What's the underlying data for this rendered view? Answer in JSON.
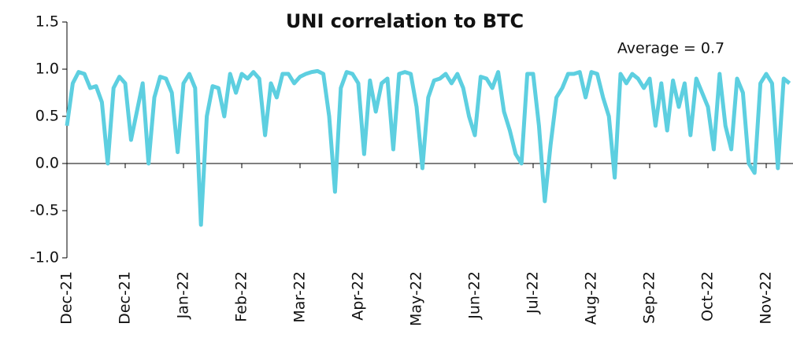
{
  "chart_data": {
    "type": "line",
    "title": "UNI correlation to BTC",
    "annotation": "Average = 0.7",
    "categories": [
      "Dec-21",
      null,
      null,
      null,
      null,
      null,
      null,
      null,
      null,
      null,
      "Dec-21",
      null,
      null,
      null,
      null,
      null,
      null,
      null,
      null,
      null,
      "Jan-22",
      null,
      null,
      null,
      null,
      null,
      null,
      null,
      null,
      null,
      "Feb-22",
      null,
      null,
      null,
      null,
      null,
      null,
      null,
      null,
      null,
      "Mar-22",
      null,
      null,
      null,
      null,
      null,
      null,
      null,
      null,
      null,
      "Apr-22",
      null,
      null,
      null,
      null,
      null,
      null,
      null,
      null,
      null,
      "May-22",
      null,
      null,
      null,
      null,
      null,
      null,
      null,
      null,
      null,
      "Jun-22",
      null,
      null,
      null,
      null,
      null,
      null,
      null,
      null,
      null,
      "Jul-22",
      null,
      null,
      null,
      null,
      null,
      null,
      null,
      null,
      null,
      "Aug-22",
      null,
      null,
      null,
      null,
      null,
      null,
      null,
      null,
      null,
      "Sep-22",
      null,
      null,
      null,
      null,
      null,
      null,
      null,
      null,
      null,
      "Oct-22",
      null,
      null,
      null,
      null,
      null,
      null,
      null,
      null,
      null,
      "Nov-22",
      null,
      null,
      null,
      null
    ],
    "series": [
      {
        "color": "#5dcfe0",
        "values": [
          0.4,
          0.85,
          0.97,
          0.95,
          0.8,
          0.82,
          0.65,
          0.0,
          0.8,
          0.92,
          0.85,
          0.25,
          0.55,
          0.85,
          0.0,
          0.7,
          0.92,
          0.9,
          0.75,
          0.12,
          0.85,
          0.95,
          0.8,
          -0.65,
          0.5,
          0.82,
          0.8,
          0.5,
          0.95,
          0.75,
          0.95,
          0.9,
          0.97,
          0.9,
          0.3,
          0.85,
          0.7,
          0.95,
          0.95,
          0.85,
          0.92,
          0.95,
          0.97,
          0.98,
          0.95,
          0.5,
          -0.3,
          0.8,
          0.97,
          0.95,
          0.85,
          0.1,
          0.88,
          0.55,
          0.85,
          0.9,
          0.15,
          0.95,
          0.97,
          0.95,
          0.6,
          -0.05,
          0.7,
          0.88,
          0.9,
          0.95,
          0.85,
          0.95,
          0.8,
          0.5,
          0.3,
          0.92,
          0.9,
          0.8,
          0.97,
          0.55,
          0.35,
          0.1,
          0.0,
          0.95,
          0.95,
          0.4,
          -0.4,
          0.2,
          0.7,
          0.8,
          0.95,
          0.95,
          0.97,
          0.7,
          0.97,
          0.95,
          0.7,
          0.5,
          -0.15,
          0.95,
          0.85,
          0.95,
          0.9,
          0.8,
          0.9,
          0.4,
          0.85,
          0.35,
          0.88,
          0.6,
          0.85,
          0.3,
          0.9,
          0.75,
          0.6,
          0.15,
          0.95,
          0.4,
          0.15,
          0.9,
          0.75,
          0.0,
          -0.1,
          0.85,
          0.95,
          0.85,
          -0.05,
          0.9,
          0.85
        ]
      }
    ],
    "ylim": [
      -1,
      1.5
    ],
    "yticks": [
      -0.5,
      {
        "value": -1,
        "label": "-1.0"
      },
      {
        "value": 0,
        "label": "0.0"
      },
      0.5,
      {
        "value": 1,
        "label": "1.0"
      },
      1.5
    ]
  }
}
